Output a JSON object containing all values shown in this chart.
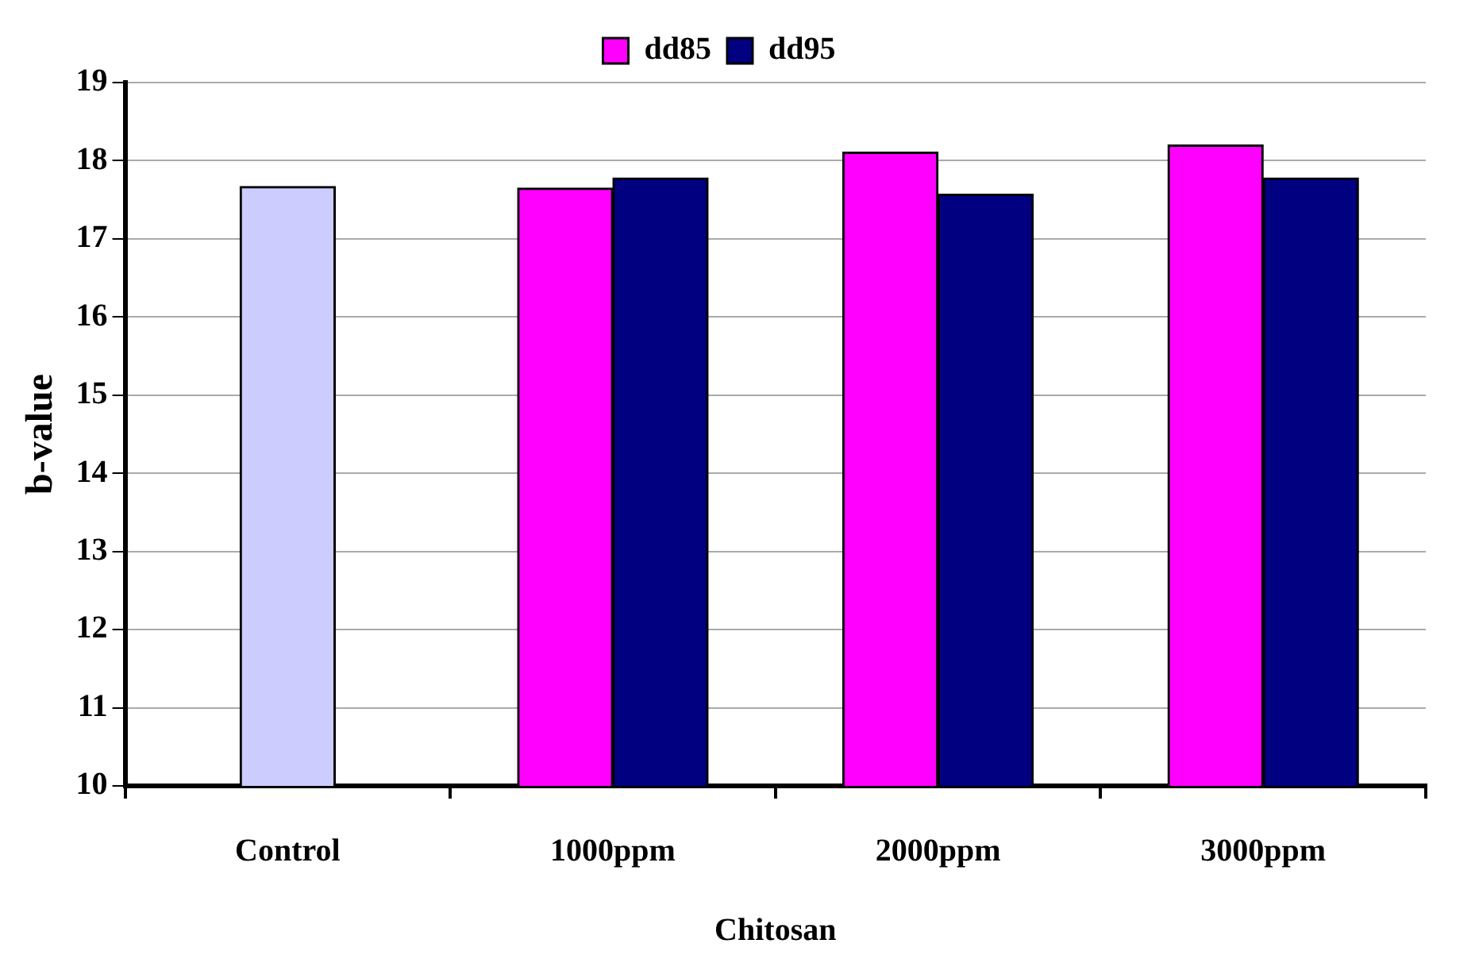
{
  "chart_data": {
    "type": "bar",
    "xlabel": "Chitosan",
    "ylabel": "b-value",
    "categories": [
      "Control",
      "1000ppm",
      "2000ppm",
      "3000ppm"
    ],
    "series": [
      {
        "color": "#ccccff",
        "values": [
          17.67,
          null,
          null,
          null
        ]
      },
      {
        "name": "dd85",
        "color": "#ff00ff",
        "values": [
          null,
          17.65,
          18.11,
          18.2
        ]
      },
      {
        "name": "dd95",
        "color": "#000080",
        "values": [
          null,
          17.78,
          17.57,
          17.78
        ]
      }
    ],
    "ylim": [
      10,
      19
    ],
    "yticks": [
      10,
      11,
      12,
      13,
      14,
      15,
      16,
      17,
      18,
      19
    ],
    "grid": "y",
    "legend": "top"
  }
}
